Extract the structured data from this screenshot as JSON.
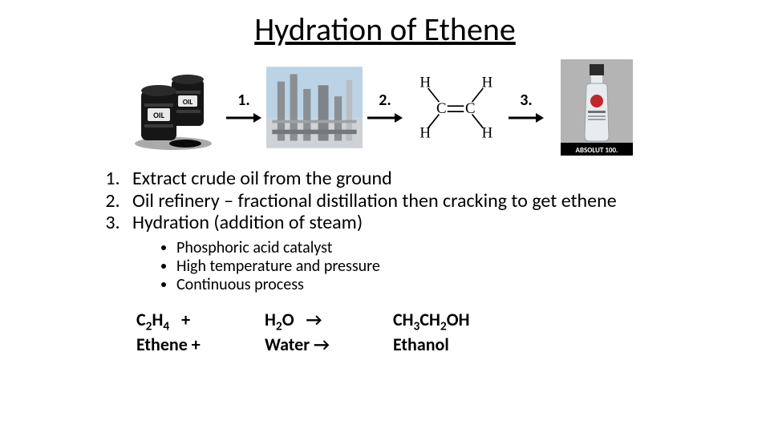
{
  "title": "Hydration of Ethene",
  "flow": {
    "arrow_labels": [
      "1.",
      "2.",
      "3."
    ],
    "images": {
      "oil": {
        "name": "oil-barrels",
        "label_text": "OIL",
        "barrel_color": "#161616",
        "label_bg": "#e9e9e9"
      },
      "refinery": {
        "name": "oil-refinery",
        "sky": "#bcd3e6",
        "tower": "#8a8f93",
        "pipe": "#b9bcc0"
      },
      "ethene": {
        "name": "ethene-structure",
        "atoms": {
          "C": "C",
          "H": "H"
        },
        "bond_color": "#000000",
        "text_color": "#000000"
      },
      "vodka": {
        "name": "absolut-vodka",
        "caption": "ABSOLUT 100.",
        "bottle_fill": "#e9ecef",
        "cap": "#2b2b2b",
        "bg": "#b4b4b4",
        "label_red": "#c1272d"
      }
    },
    "arrow_color": "#000000"
  },
  "steps": [
    "Extract crude oil from the ground",
    "Oil refinery – fractional distillation then cracking to get ethene",
    "Hydration (addition of steam)"
  ],
  "bullets": [
    "Phosphoric acid catalyst",
    "High temperature and pressure",
    "Continuous process"
  ],
  "equation": {
    "row1": {
      "col1_html": "C<sub>2</sub>H<sub>4</sub>&nbsp;&nbsp;&nbsp;+",
      "col2_html": "H<sub>2</sub>O&nbsp;&nbsp;&nbsp;→",
      "col3_html": "CH<sub>3</sub>CH<sub>2</sub>OH"
    },
    "row2": {
      "col1": "Ethene +",
      "col2": "Water  →",
      "col3": "Ethanol"
    }
  },
  "colors": {
    "text": "#000000",
    "background": "#ffffff"
  }
}
